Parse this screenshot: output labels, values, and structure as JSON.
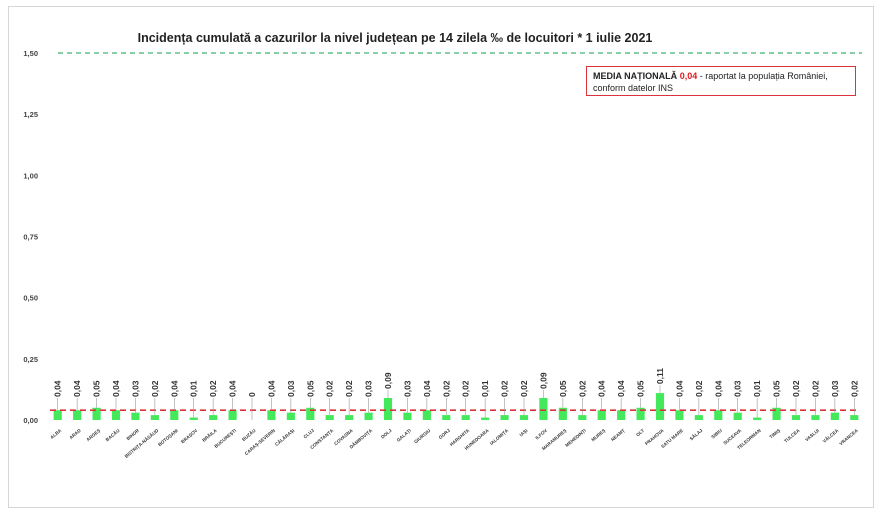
{
  "chart_data": {
    "type": "bar",
    "title": "Incidența cumulată a cazurilor la nivel județean pe 14 zilela ‰ de locuitori *  1 iulie 2021",
    "ylim": [
      0,
      1.5
    ],
    "yticks": [
      "0,00",
      "0,25",
      "0,50",
      "0,75",
      "1,00",
      "1,25",
      "1,50"
    ],
    "grid": false,
    "bar_color": "#43e85b",
    "threshold_line": {
      "value": 1.5,
      "color": "#3cb371",
      "style": "dashed"
    },
    "national_average_line": {
      "value": 0.04,
      "color": "#d9343a",
      "style": "dashed"
    },
    "categories": [
      "ALBA",
      "ARAD",
      "ARGEȘ",
      "BACĂU",
      "BIHOR",
      "BISTRIȚA-NĂSĂUD",
      "BOTOȘANI",
      "BRAȘOV",
      "BRĂILA",
      "BUCUREȘTI",
      "BUZĂU",
      "CARAȘ-SEVERIN",
      "CĂLĂRAȘI",
      "CLUJ",
      "CONSTANȚA",
      "COVASNA",
      "DÂMBOVIȚA",
      "DOLJ",
      "GALAȚI",
      "GIURGIU",
      "GORJ",
      "HARGHITA",
      "HUNEDOARA",
      "IALOMIȚA",
      "IAȘI",
      "ILFOV",
      "MARAMUREȘ",
      "MEHEDINȚI",
      "MUREȘ",
      "NEAMȚ",
      "OLT",
      "PRAHOVA",
      "SATU MARE",
      "SĂLAJ",
      "SIBIU",
      "SUCEAVA",
      "TELEORMAN",
      "TIMIȘ",
      "TULCEA",
      "VASLUI",
      "VÂLCEA",
      "VRANCEA"
    ],
    "values": [
      0.04,
      0.04,
      0.05,
      0.04,
      0.03,
      0.02,
      0.04,
      0.01,
      0.02,
      0.04,
      0,
      0.04,
      0.03,
      0.05,
      0.02,
      0.02,
      0.03,
      0.09,
      0.03,
      0.04,
      0.02,
      0.02,
      0.01,
      0.02,
      0.02,
      0.09,
      0.05,
      0.02,
      0.04,
      0.04,
      0.05,
      0.11,
      0.04,
      0.02,
      0.04,
      0.03,
      0.01,
      0.05,
      0.02,
      0.02,
      0.03,
      0.02
    ],
    "data_labels": [
      "0,04",
      "0,04",
      "0,05",
      "0,04",
      "0,03",
      "0,02",
      "0,04",
      "0,01",
      "0,02",
      "0,04",
      "0",
      "0,04",
      "0,03",
      "0,05",
      "0,02",
      "0,02",
      "0,03",
      "0,09",
      "0,03",
      "0,04",
      "0,02",
      "0,02",
      "0,01",
      "0,02",
      "0,02",
      "0,09",
      "0,05",
      "0,02",
      "0,04",
      "0,04",
      "0,05",
      "0,11",
      "0,04",
      "0,02",
      "0,04",
      "0,03",
      "0,01",
      "0,05",
      "0,02",
      "0,02",
      "0,03",
      "0,02"
    ]
  },
  "legend": {
    "title": "MEDIA NAȚIONALĂ",
    "value": "0,04",
    "text_line1": " - raportat la populația României,",
    "text_line2": "conform datelor INS"
  }
}
